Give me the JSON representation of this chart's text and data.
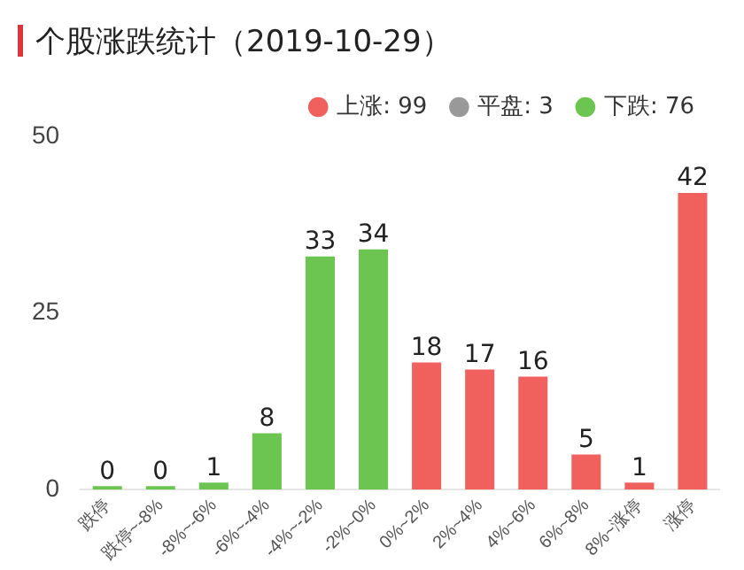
{
  "chart_data": {
    "type": "bar",
    "title": "个股涨跌统计（2019-10-29）",
    "categories": [
      "跌停",
      "跌停~-8%",
      "-8%~-6%",
      "-6%~-4%",
      "-4%~-2%",
      "-2%~0%",
      "0%~2%",
      "2%~4%",
      "4%~6%",
      "6%~8%",
      "8%~涨停",
      "涨停"
    ],
    "series": [
      {
        "name": "上涨: 99",
        "color": "#f0605d",
        "values": [
          null,
          null,
          null,
          null,
          null,
          null,
          18,
          17,
          16,
          5,
          1,
          42
        ]
      },
      {
        "name": "平盘: 3",
        "color": "#999999",
        "values": [
          null,
          null,
          null,
          null,
          null,
          null,
          null,
          null,
          null,
          null,
          null,
          null
        ]
      },
      {
        "name": "下跌: 76",
        "color": "#6cc551",
        "values": [
          0,
          0,
          1,
          8,
          33,
          34,
          null,
          null,
          null,
          null,
          null,
          null
        ]
      }
    ],
    "stacked": true,
    "ylim": [
      0,
      50
    ],
    "yticks": [
      0,
      25,
      50
    ],
    "grid": false,
    "legend": "top right",
    "data_labels": true
  }
}
